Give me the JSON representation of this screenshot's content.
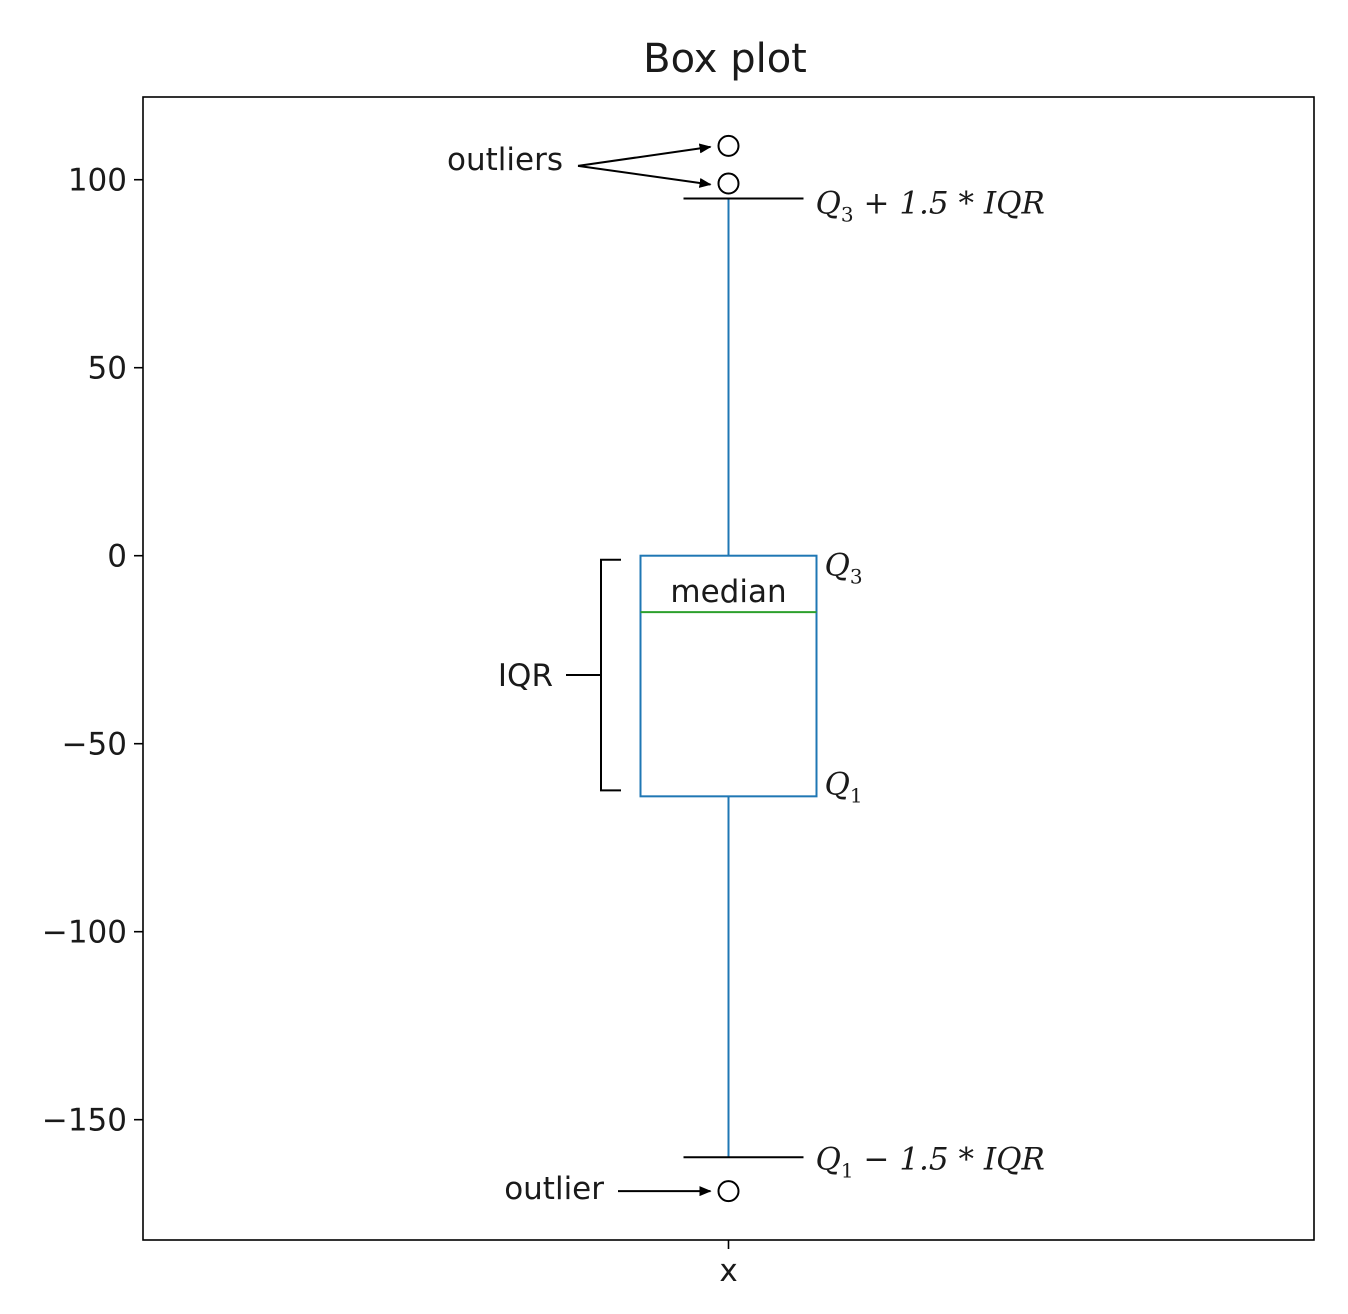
{
  "chart_data": {
    "type": "box",
    "title": "Box plot",
    "xlabel": "",
    "ylabel": "",
    "categories": [
      "x"
    ],
    "ylim": [
      -182,
      122
    ],
    "yticks": [
      100,
      50,
      0,
      -50,
      -100,
      -150
    ],
    "ytick_labels": [
      "100",
      "50",
      "0",
      "−50",
      "−100",
      "−150"
    ],
    "grid": false,
    "legend": "none",
    "box": {
      "q1": -64,
      "median": -15,
      "q3": 0,
      "whisker_low": -160,
      "whisker_high": 95,
      "outliers": [
        109,
        99,
        -169
      ]
    },
    "annotations": {
      "outliers_label": "outliers",
      "outlier_label": "outlier",
      "median_label": "median",
      "iqr_label": "IQR",
      "q3_symbol": "Q",
      "q3_sub": "3",
      "q1_symbol": "Q",
      "q1_sub": "1",
      "upper_fence_text": " + 1.5 * IQR",
      "lower_fence_text": " − 1.5 * IQR"
    },
    "colors": {
      "box": "#1f77b4",
      "median": "#2ca02c",
      "outlier": "#000000",
      "axes": "#000000"
    }
  }
}
